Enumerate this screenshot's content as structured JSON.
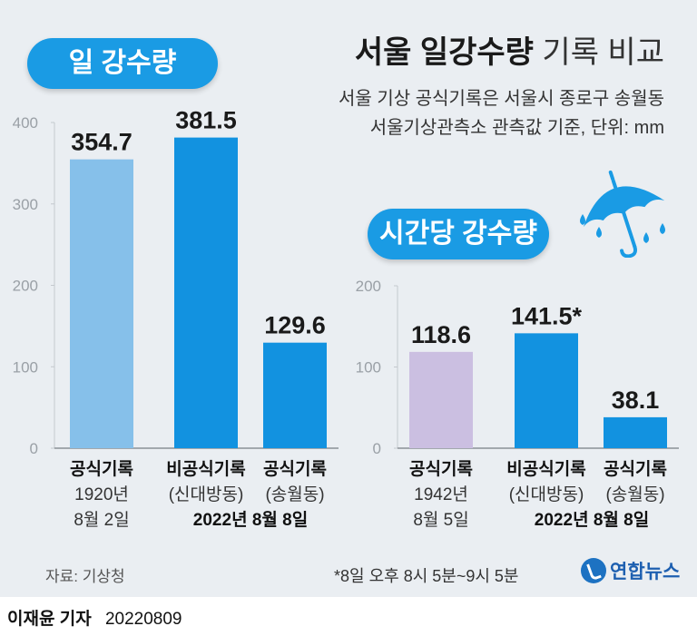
{
  "title": {
    "bold": "서울 일강수량",
    "light": "기록 비교"
  },
  "subtitle_lines": [
    "서울 기상 공식기록은 서울시 종로구 송월동",
    "서울기상관측소 관측값 기준, 단위: mm"
  ],
  "source": "자료: 기상청",
  "footnote": "*8일 오후 8시 5분~9시 5분",
  "logo": "연합뉴스",
  "reporter": {
    "name": "이재윤 기자",
    "date": "20220809"
  },
  "colors": {
    "panel": "#eaeef2",
    "pill": "#1a9be4",
    "official_old_daily": "#86c0ea",
    "official_old_hourly": "#cbbfe1",
    "new_record": "#1292e0",
    "axis_text": "#9aa0a6"
  },
  "icon": "umbrella-rain-icon",
  "chart_data": [
    {
      "type": "bar",
      "title": "일 강수량",
      "ylim": [
        0,
        400
      ],
      "yticks": [
        0,
        100,
        200,
        300,
        400
      ],
      "categories": [
        {
          "lines": [
            "공식기록",
            "1920년",
            "8월 2일"
          ],
          "bold": [
            true,
            false,
            false
          ]
        },
        {
          "lines": [
            "비공식기록",
            "(신대방동)"
          ],
          "bold": [
            true,
            false
          ]
        },
        {
          "lines": [
            "공식기록",
            "(송월동)"
          ],
          "bold": [
            true,
            false
          ]
        }
      ],
      "shared_label": "2022년 8월 8일",
      "values": [
        354.7,
        381.5,
        129.6
      ],
      "value_labels": [
        "354.7",
        "381.5",
        "129.6"
      ],
      "bar_colors": [
        "#86c0ea",
        "#1292e0",
        "#1292e0"
      ]
    },
    {
      "type": "bar",
      "title": "시간당 강수량",
      "ylim": [
        0,
        200
      ],
      "yticks": [
        0,
        100,
        200
      ],
      "categories": [
        {
          "lines": [
            "공식기록",
            "1942년",
            "8월 5일"
          ],
          "bold": [
            true,
            false,
            false
          ]
        },
        {
          "lines": [
            "비공식기록",
            "(신대방동)"
          ],
          "bold": [
            true,
            false
          ]
        },
        {
          "lines": [
            "공식기록",
            "(송월동)"
          ],
          "bold": [
            true,
            false
          ]
        }
      ],
      "shared_label": "2022년 8월 8일",
      "values": [
        118.6,
        141.5,
        38.1
      ],
      "value_labels": [
        "118.6",
        "141.5*",
        "38.1"
      ],
      "bar_colors": [
        "#cbbfe1",
        "#1292e0",
        "#1292e0"
      ]
    }
  ]
}
